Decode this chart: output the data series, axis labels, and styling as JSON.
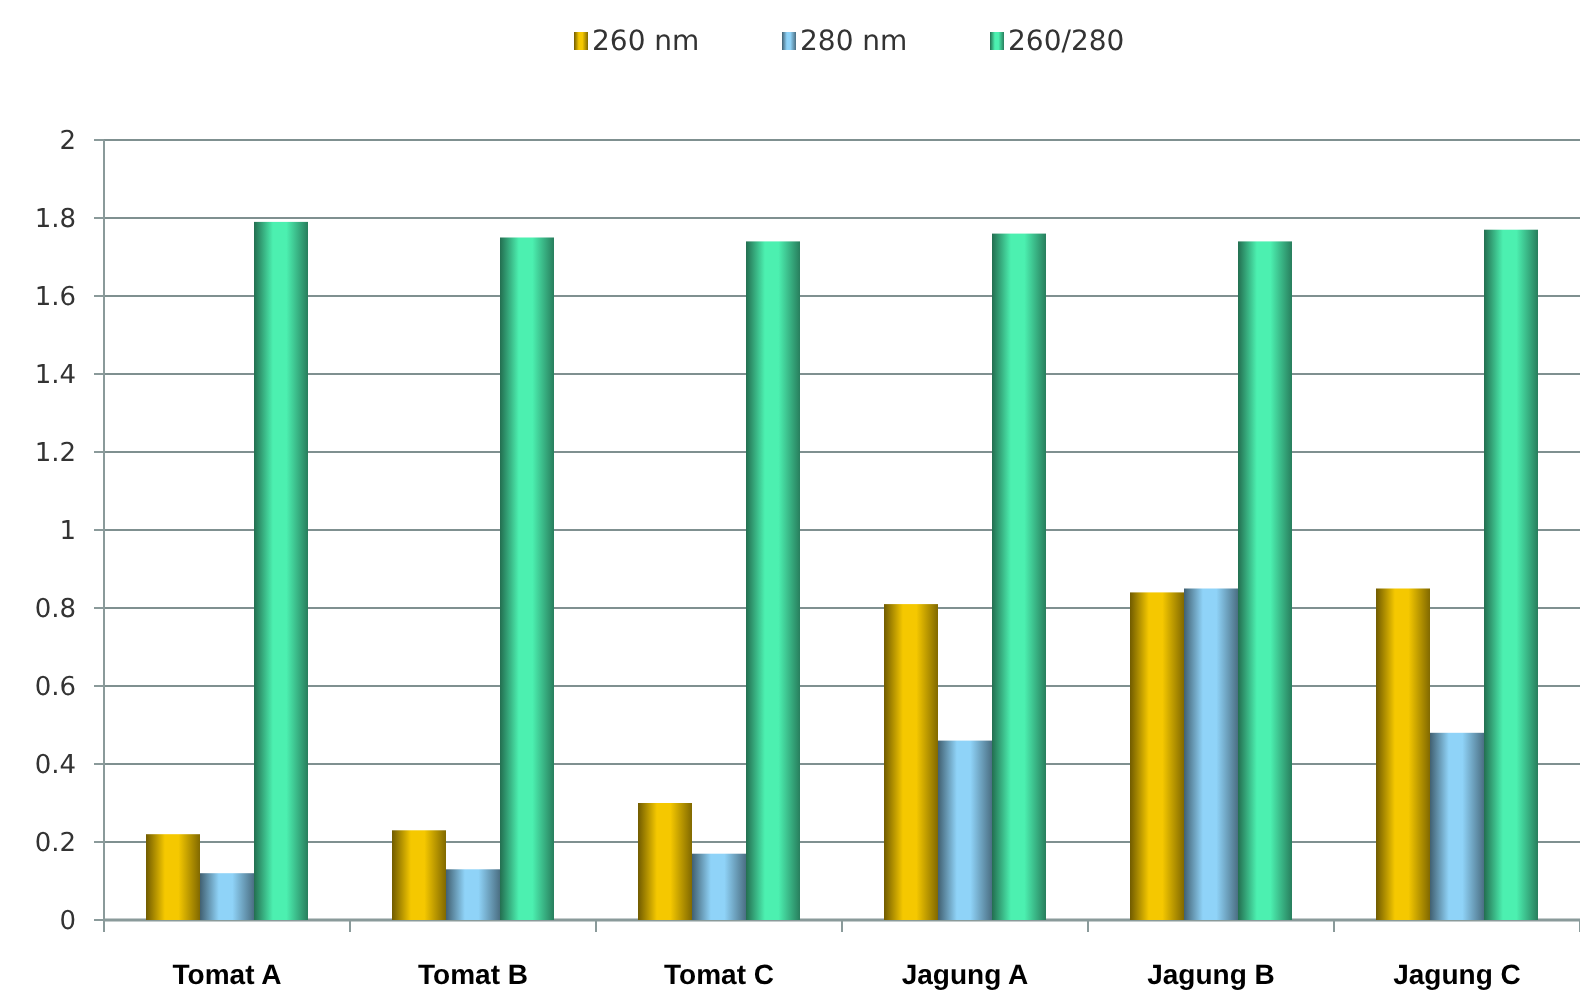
{
  "chart_data": {
    "type": "bar",
    "categories": [
      "Tomat A",
      "Tomat B",
      "Tomat C",
      "Jagung A",
      "Jagung B",
      "Jagung C"
    ],
    "series": [
      {
        "name": "260 nm",
        "color": "#f5c800",
        "values": [
          0.22,
          0.23,
          0.3,
          0.81,
          0.84,
          0.85
        ]
      },
      {
        "name": "280 nm",
        "color": "#8fd3f8",
        "values": [
          0.12,
          0.13,
          0.17,
          0.46,
          0.85,
          0.48
        ]
      },
      {
        "name": "260/280",
        "color": "#4cf0b0",
        "values": [
          1.79,
          1.75,
          1.74,
          1.76,
          1.74,
          1.77
        ]
      }
    ],
    "ylim": [
      0,
      2
    ],
    "yticks": [
      0,
      0.2,
      0.4,
      0.6,
      0.8,
      1,
      1.2,
      1.4,
      1.6,
      1.8,
      2
    ],
    "grid": "y",
    "legend": "top"
  }
}
